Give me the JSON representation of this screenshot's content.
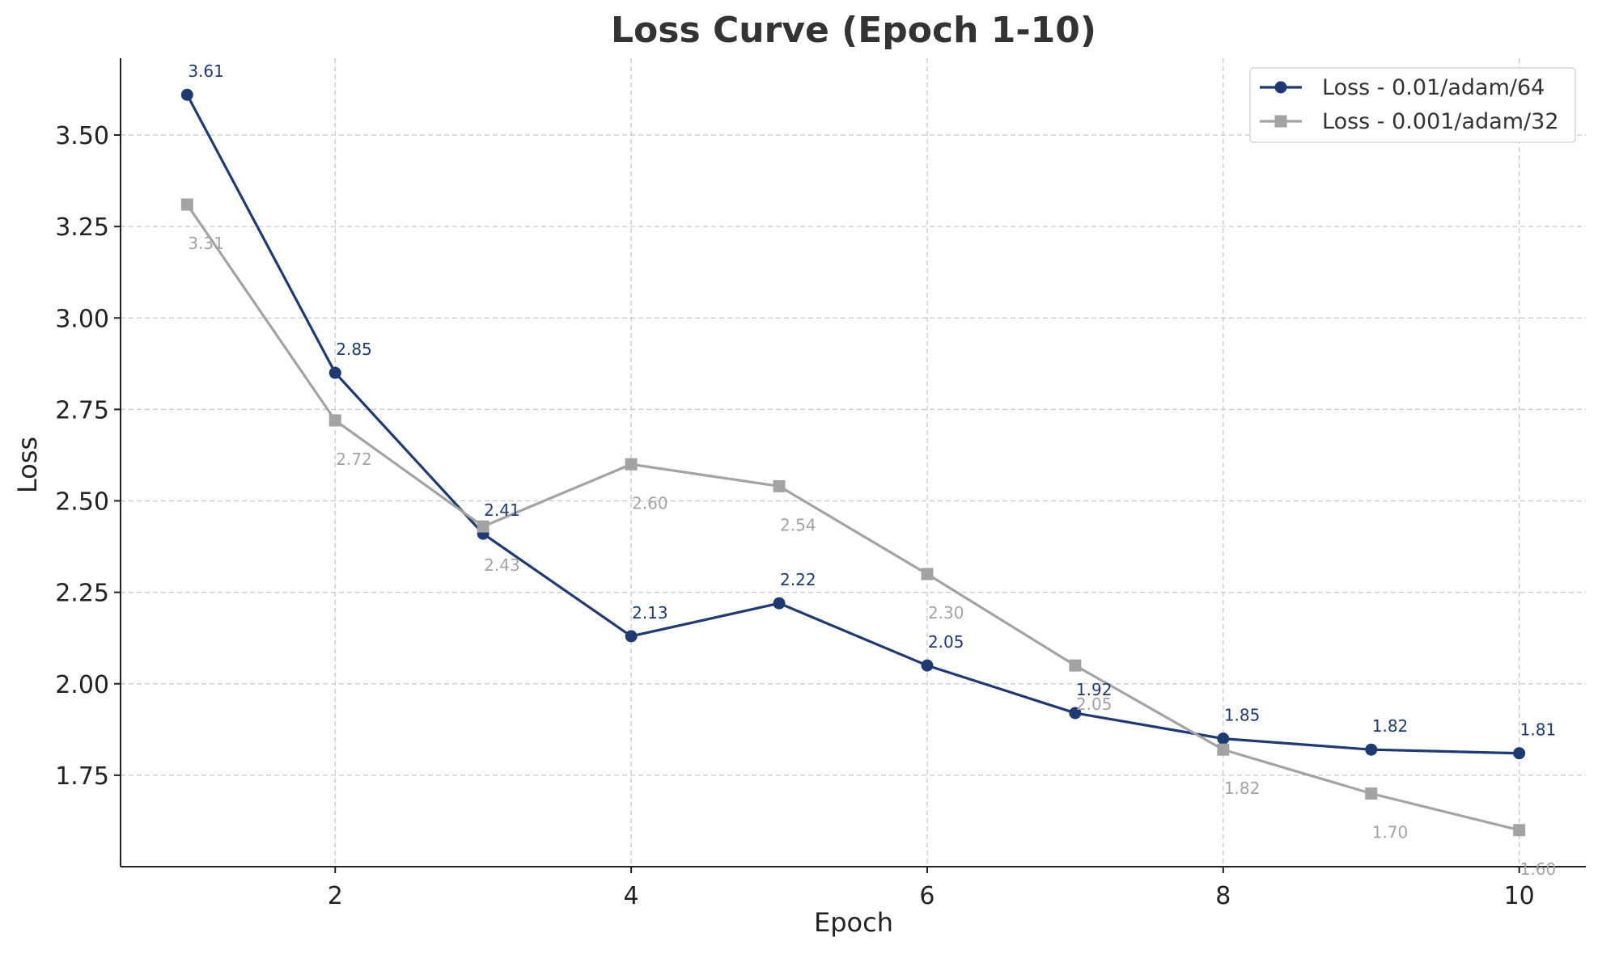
{
  "chart_data": {
    "type": "line",
    "title": "Loss Curve (Epoch 1-10)",
    "xlabel": "Epoch",
    "ylabel": "Loss",
    "x": [
      1,
      2,
      3,
      4,
      5,
      6,
      7,
      8,
      9,
      10
    ],
    "xlim": [
      0.55,
      10.45
    ],
    "ylim": [
      1.5,
      3.71
    ],
    "xticks": [
      2,
      4,
      6,
      8,
      10
    ],
    "xtick_labels": [
      "2",
      "4",
      "6",
      "8",
      "10"
    ],
    "yticks": [
      1.75,
      2.0,
      2.25,
      2.5,
      2.75,
      3.0,
      3.25,
      3.5
    ],
    "ytick_labels": [
      "1.75",
      "2.00",
      "2.25",
      "2.50",
      "2.75",
      "3.00",
      "3.25",
      "3.50"
    ],
    "grid": true,
    "legend_position": "top-right",
    "series": [
      {
        "name": "Loss - 0.01/adam/64",
        "marker": "circle",
        "color": "#1f3a73",
        "label_placement": "above",
        "values": [
          3.61,
          2.85,
          2.41,
          2.13,
          2.22,
          2.05,
          1.92,
          1.85,
          1.82,
          1.81
        ],
        "labels": [
          "3.61",
          "2.85",
          "2.41",
          "2.13",
          "2.22",
          "2.05",
          "1.92",
          "1.85",
          "1.82",
          "1.81"
        ]
      },
      {
        "name": "Loss - 0.001/adam/32",
        "marker": "square",
        "color": "#a3a3a3",
        "label_placement": "below",
        "values": [
          3.31,
          2.72,
          2.43,
          2.6,
          2.54,
          2.3,
          2.05,
          1.82,
          1.7,
          1.6
        ],
        "labels": [
          "3.31",
          "2.72",
          "2.43",
          "2.60",
          "2.54",
          "2.30",
          "2.05",
          "1.82",
          "1.70",
          "1.60"
        ]
      }
    ]
  }
}
